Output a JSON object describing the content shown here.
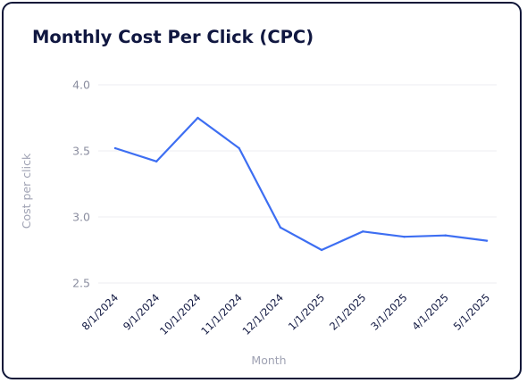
{
  "chart_data": {
    "type": "line",
    "title": "Monthly Cost Per Click (CPC)",
    "xlabel": "Month",
    "ylabel": "Cost per click",
    "categories": [
      "8/1/2024",
      "9/1/2024",
      "10/1/2024",
      "11/1/2024",
      "12/1/2024",
      "1/1/2025",
      "2/1/2025",
      "3/1/2025",
      "4/1/2025",
      "5/1/2025"
    ],
    "series": [
      {
        "values": [
          3.52,
          3.42,
          3.75,
          3.52,
          2.92,
          2.75,
          2.89,
          2.85,
          2.86,
          2.82
        ]
      }
    ],
    "yticks": [
      "2.5",
      "3.0",
      "3.5",
      "4.0"
    ],
    "ylim": [
      2.5,
      4.0
    ],
    "grid": true,
    "legend": "none",
    "line_color": "#3d6ef2",
    "grid_color": "#eceef2",
    "title_color": "#101740"
  }
}
